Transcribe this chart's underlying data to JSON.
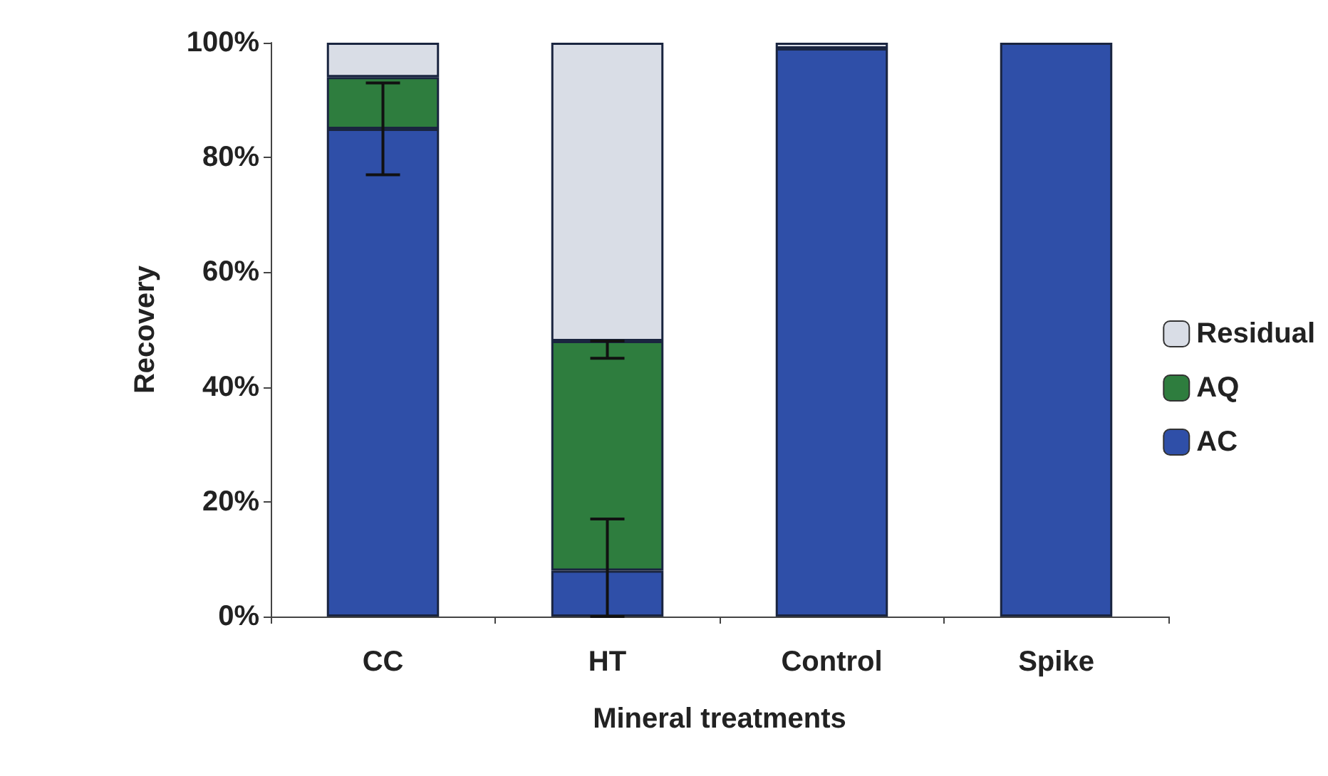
{
  "chart_data": {
    "type": "bar",
    "stacked": true,
    "xlabel": "Mineral treatments",
    "ylabel": "Recovery",
    "categories": [
      "CC",
      "HT",
      "Control",
      "Spike"
    ],
    "series": [
      {
        "name": "AC",
        "color": "#2f4fa8",
        "values": [
          85,
          8,
          99,
          100
        ],
        "errors": [
          [
            77,
            93
          ],
          [
            0,
            17
          ],
          null,
          null
        ]
      },
      {
        "name": "AQ",
        "color": "#2e7d3e",
        "values": [
          9,
          40,
          null,
          null
        ],
        "errors": [
          null,
          [
            45,
            48
          ],
          null,
          null
        ]
      },
      {
        "name": "Residual",
        "color": "#d9dde6",
        "values": [
          6,
          52,
          1,
          null
        ]
      }
    ],
    "ylim": [
      0,
      100
    ],
    "yticks": [
      {
        "value": 0,
        "label": "0%"
      },
      {
        "value": 20,
        "label": "20%"
      },
      {
        "value": 40,
        "label": "40%"
      },
      {
        "value": 60,
        "label": "60%"
      },
      {
        "value": 80,
        "label": "80%"
      },
      {
        "value": 100,
        "label": "100%"
      }
    ],
    "grid": false,
    "legend": "right"
  }
}
